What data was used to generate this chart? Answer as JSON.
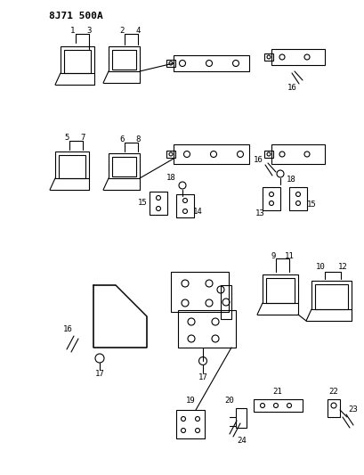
{
  "title": "8J71 500A",
  "background_color": "#ffffff",
  "line_color": "#000000",
  "figsize": [
    4.1,
    5.33
  ],
  "dpi": 100
}
